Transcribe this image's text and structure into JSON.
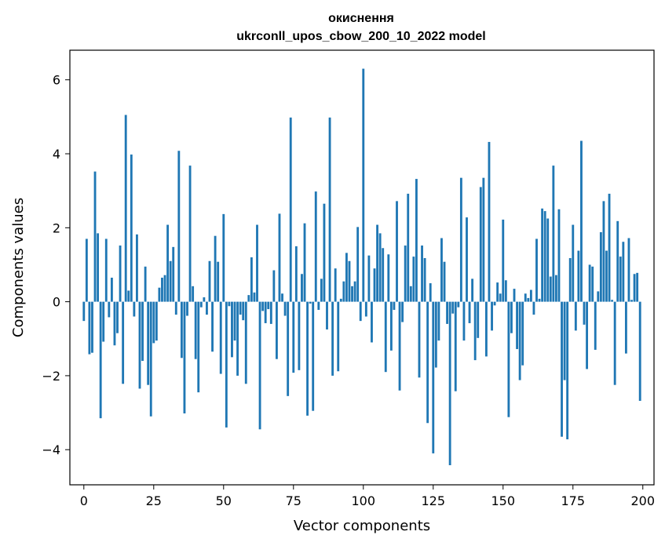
{
  "chart_data": {
    "type": "bar",
    "title_line1": "окиснення",
    "title_line2": "ukrconll_upos_cbow_200_10_2022 model",
    "xlabel": "Vector components",
    "ylabel": "Components values",
    "xlim": [
      -5,
      204
    ],
    "ylim": [
      -4.95,
      6.8
    ],
    "xticks": [
      0,
      25,
      50,
      75,
      100,
      125,
      150,
      175,
      200
    ],
    "yticks": [
      -4,
      -2,
      0,
      2,
      4,
      6
    ],
    "ytick_labels": [
      "−4",
      "−2",
      "0",
      "2",
      "4",
      "6"
    ],
    "bar_color": "#1f77b4",
    "grid": false,
    "values": [
      -0.52,
      1.7,
      -1.42,
      -1.38,
      3.52,
      1.85,
      -3.15,
      -1.08,
      1.7,
      -0.42,
      0.65,
      -1.18,
      -0.85,
      1.52,
      -2.22,
      5.05,
      0.3,
      3.98,
      -0.4,
      1.82,
      -2.35,
      -1.6,
      0.95,
      -2.25,
      -3.1,
      -1.12,
      -1.05,
      0.38,
      0.65,
      0.72,
      2.08,
      1.1,
      1.48,
      -0.35,
      4.08,
      -1.52,
      -3.02,
      -0.38,
      3.68,
      0.42,
      -1.55,
      -2.45,
      -0.15,
      0.12,
      -0.35,
      1.1,
      -1.35,
      1.78,
      1.08,
      -1.95,
      2.37,
      -3.4,
      -0.12,
      -1.5,
      -1.05,
      -2.0,
      -0.35,
      -0.5,
      -2.22,
      0.18,
      1.2,
      0.25,
      2.08,
      -3.45,
      -0.25,
      -0.58,
      -0.2,
      -0.6,
      0.85,
      -1.55,
      2.38,
      0.22,
      -0.38,
      -2.55,
      4.98,
      -1.92,
      1.5,
      -1.85,
      0.75,
      2.12,
      -3.08,
      -0.05,
      -2.95,
      2.98,
      -0.22,
      0.62,
      2.65,
      -0.75,
      4.98,
      -2.0,
      0.9,
      -1.88,
      0.08,
      0.55,
      1.32,
      1.1,
      0.42,
      0.55,
      2.02,
      -0.52,
      6.3,
      -0.4,
      1.25,
      -1.1,
      0.9,
      2.08,
      1.85,
      1.45,
      -1.9,
      1.28,
      -1.32,
      -0.22,
      2.72,
      -2.4,
      -0.55,
      1.52,
      2.92,
      0.42,
      1.22,
      3.32,
      -2.05,
      1.52,
      1.18,
      -3.28,
      0.5,
      -4.1,
      -1.78,
      -1.05,
      1.72,
      1.08,
      -0.6,
      -4.42,
      -0.32,
      -2.42,
      -0.15,
      3.35,
      -1.05,
      2.28,
      -0.58,
      0.62,
      -1.58,
      -0.98,
      3.1,
      3.35,
      -1.48,
      4.32,
      -0.78,
      -0.1,
      0.52,
      0.22,
      2.22,
      0.58,
      -3.12,
      -0.85,
      0.35,
      -1.28,
      -2.12,
      -1.72,
      0.22,
      0.1,
      0.32,
      -0.35,
      1.7,
      0.08,
      2.52,
      2.45,
      2.25,
      0.68,
      3.68,
      0.72,
      2.5,
      -3.65,
      -2.12,
      -3.72,
      1.18,
      2.08,
      -0.78,
      1.38,
      4.35,
      -0.62,
      -1.82,
      1.0,
      0.95,
      -1.3,
      0.28,
      1.88,
      2.72,
      1.38,
      2.92,
      0.05,
      -2.25,
      2.18,
      1.22,
      1.62,
      -1.4,
      1.72,
      0.05,
      0.75,
      0.78,
      -2.68
    ]
  }
}
